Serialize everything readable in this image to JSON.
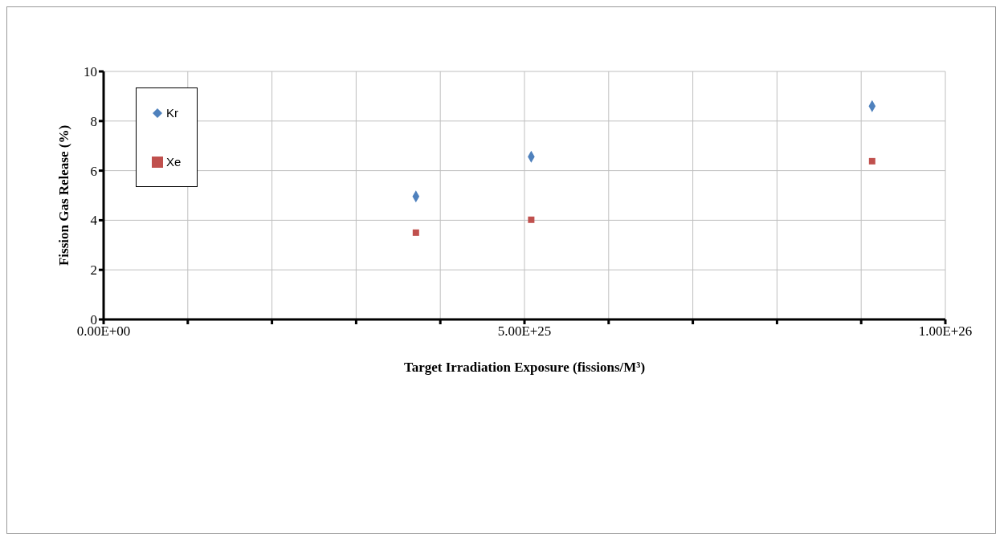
{
  "chart_data": {
    "type": "scatter",
    "xlabel": "Target Irradiation Exposure  (fissions/M³)",
    "ylabel": "Fission Gas Release (%)",
    "x": [
      3.71e+25,
      5.08e+25,
      9.13e+25
    ],
    "series": [
      {
        "name": "Kr",
        "color": "#4f81bd",
        "marker": "diamond",
        "values": [
          4.96,
          6.56,
          8.6
        ]
      },
      {
        "name": "Xe",
        "color": "#c0504d",
        "marker": "square",
        "values": [
          3.5,
          4.02,
          6.38
        ]
      }
    ],
    "xlim": [
      0,
      1e+26
    ],
    "xticks": [
      {
        "value": 0,
        "label": "0.00E+00"
      },
      {
        "value": 1e+25,
        "label": null
      },
      {
        "value": 2e+25,
        "label": null
      },
      {
        "value": 3e+25,
        "label": null
      },
      {
        "value": 4e+25,
        "label": null
      },
      {
        "value": 5e+25,
        "label": "5.00E+25"
      },
      {
        "value": 6e+25,
        "label": null
      },
      {
        "value": 7e+25,
        "label": null
      },
      {
        "value": 8e+25,
        "label": null
      },
      {
        "value": 9e+25,
        "label": null
      },
      {
        "value": 1e+26,
        "label": "1.00E+26"
      }
    ],
    "ylim": [
      0,
      10
    ],
    "yticks": [
      0,
      2,
      4,
      6,
      8,
      10
    ],
    "grid": true,
    "legend": "top left"
  }
}
